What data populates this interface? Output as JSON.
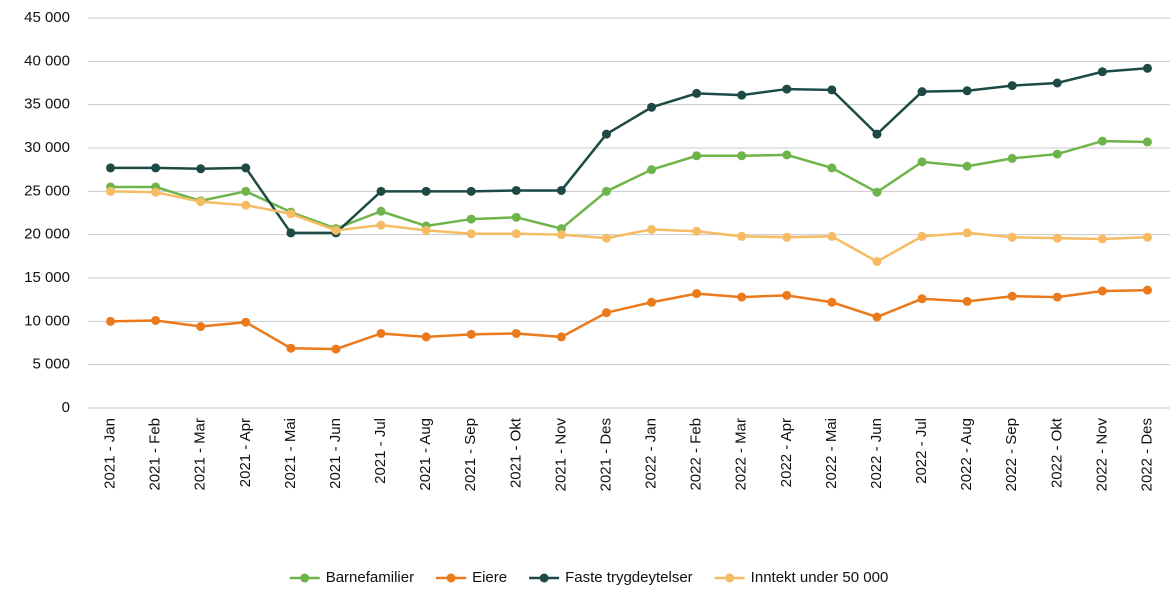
{
  "chart_data": {
    "type": "line",
    "categories": [
      "2021 - Jan",
      "2021 - Feb",
      "2021 - Mar",
      "2021 - Apr",
      "2021 - Mai",
      "2021 - Jun",
      "2021 - Jul",
      "2021 - Aug",
      "2021 - Sep",
      "2021 - Okt",
      "2021 - Nov",
      "2021 - Des",
      "2022 - Jan",
      "2022 - Feb",
      "2022 - Mar",
      "2022 - Apr",
      "2022 - Mai",
      "2022 - Jun",
      "2022 - Jul",
      "2022 - Aug",
      "2022 - Sep",
      "2022 - Okt",
      "2022 - Nov",
      "2022 - Des"
    ],
    "series": [
      {
        "name": "Barnefamilier",
        "color": "#6db54a",
        "values": [
          25500,
          25500,
          23900,
          25000,
          22600,
          20700,
          22700,
          21000,
          21800,
          22000,
          20700,
          25000,
          27500,
          29100,
          29100,
          29200,
          27700,
          24900,
          28400,
          27900,
          28800,
          29300,
          30800,
          30700
        ]
      },
      {
        "name": "Eiere",
        "color": "#ea7a1c",
        "values": [
          10000,
          10100,
          9400,
          9900,
          6900,
          6800,
          8600,
          8200,
          8500,
          8600,
          8200,
          11000,
          12200,
          13200,
          12800,
          13000,
          12200,
          10500,
          12600,
          12300,
          12900,
          12800,
          13500,
          13600
        ]
      },
      {
        "name": "Faste trygdeytelser",
        "color": "#1d4a44",
        "values": [
          27700,
          27700,
          27600,
          27700,
          20200,
          20200,
          25000,
          25000,
          25000,
          25100,
          25100,
          31600,
          34700,
          36300,
          36100,
          36800,
          36700,
          31600,
          36500,
          36600,
          37200,
          37500,
          38800,
          39200
        ]
      },
      {
        "name": "Inntekt under 50 000",
        "color": "#f6bb63",
        "values": [
          25000,
          24900,
          23800,
          23400,
          22400,
          20500,
          21100,
          20500,
          20100,
          20100,
          20000,
          19600,
          20600,
          20400,
          19800,
          19700,
          19800,
          16900,
          19800,
          20200,
          19700,
          19600,
          19500,
          19700
        ]
      }
    ],
    "ylim": [
      0,
      45000
    ],
    "yticks": [
      0,
      {
        "value": 5000,
        "label": "5 000"
      },
      {
        "value": 10000,
        "label": "10 000"
      },
      {
        "value": 15000,
        "label": "15 000"
      },
      {
        "value": 20000,
        "label": "20 000"
      },
      {
        "value": 25000,
        "label": "25 000"
      },
      {
        "value": 30000,
        "label": "30 000"
      },
      {
        "value": 35000,
        "label": "35 000"
      },
      {
        "value": 40000,
        "label": "40 000"
      },
      {
        "value": 45000,
        "label": "45 000"
      }
    ],
    "grid": true,
    "legend": "bottom"
  }
}
